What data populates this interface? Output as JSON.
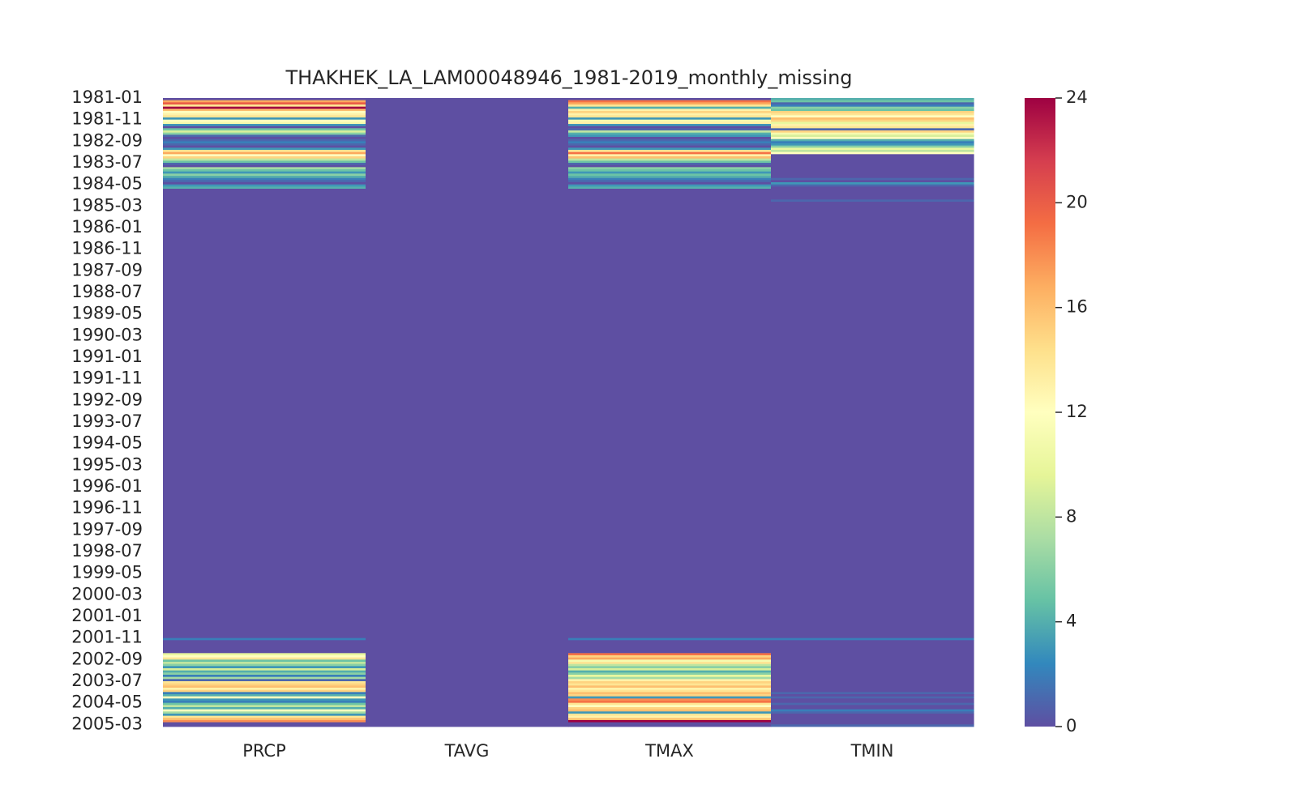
{
  "chart_data": {
    "type": "heatmap",
    "title": "THAKHEK_LA_LAM00048946_1981-2019_monthly_missing",
    "xlabel": "",
    "ylabel": "",
    "columns": [
      "PRCP",
      "TAVG",
      "TMAX",
      "TMIN"
    ],
    "row_start": "1981-01",
    "row_end": "2005-03",
    "ytick_labels": [
      "1981-01",
      "1981-11",
      "1982-09",
      "1983-07",
      "1984-05",
      "1985-03",
      "1986-01",
      "1986-11",
      "1987-09",
      "1988-07",
      "1989-05",
      "1990-03",
      "1991-01",
      "1991-11",
      "1992-09",
      "1993-07",
      "1994-05",
      "1995-03",
      "1996-01",
      "1996-11",
      "1997-09",
      "1998-07",
      "1999-05",
      "2000-03",
      "2001-01",
      "2001-11",
      "2002-09",
      "2003-07",
      "2004-05",
      "2005-03"
    ],
    "colorbar": {
      "colormap": "Spectral_r",
      "range": [
        0,
        24
      ],
      "ticks": [
        0,
        4,
        8,
        12,
        16,
        20,
        24
      ]
    },
    "series": [
      {
        "name": "PRCP",
        "segments": [
          {
            "from": "1981-01",
            "values": [
              0,
              17,
              20,
              14,
              24,
              16,
              12,
              13,
              14,
              3,
              12,
              11,
              3,
              0,
              5,
              9,
              6,
              1,
              0,
              1,
              2,
              1,
              0,
              3,
              14,
              17,
              12,
              15,
              8,
              5,
              1,
              0,
              7,
              5,
              3,
              6,
              4,
              2,
              1,
              0,
              3,
              4
            ]
          },
          {
            "from": "1984-11",
            "to": "2001-10",
            "value": 0
          },
          {
            "from": "2001-11",
            "values": [
              2
            ]
          },
          {
            "from": "2001-12",
            "to": "2002-05",
            "value": 0
          },
          {
            "from": "2002-06",
            "values": [
              10,
              12,
              14,
              5,
              8,
              6,
              3,
              9,
              4,
              6,
              2,
              7,
              1,
              14,
              15,
              16,
              13,
              15,
              2,
              4,
              12,
              3,
              2,
              5,
              8,
              4,
              12,
              7,
              3,
              14,
              16,
              18
            ]
          }
        ]
      },
      {
        "name": "TAVG",
        "segments": [
          {
            "from": "1981-01",
            "to": "2005-03",
            "value": 0
          }
        ]
      },
      {
        "name": "TMAX",
        "segments": [
          {
            "from": "1981-01",
            "values": [
              0,
              19,
              17,
              14,
              4,
              13,
              15,
              13,
              14,
              3,
              11,
              13,
              3,
              0,
              1,
              8,
              4,
              3,
              0,
              1,
              2,
              1,
              0,
              3,
              14,
              19,
              13,
              16,
              8,
              5,
              1,
              0,
              6,
              5,
              3,
              5,
              4,
              2,
              1,
              0,
              3,
              4
            ]
          },
          {
            "from": "1984-11",
            "to": "2001-10",
            "value": 0
          },
          {
            "from": "2001-11",
            "values": [
              2
            ]
          },
          {
            "from": "2001-12",
            "to": "2002-05",
            "value": 0
          },
          {
            "from": "2002-06",
            "values": [
              19,
              15,
              17,
              11,
              14,
              8,
              6,
              9,
              4,
              6,
              10,
              7,
              13,
              15,
              14,
              16,
              13,
              14,
              16,
              15,
              3,
              18,
              19,
              14,
              12,
              15,
              16,
              3,
              14,
              13,
              16,
              24
            ]
          }
        ]
      },
      {
        "name": "TMIN",
        "segments": [
          {
            "from": "1981-01",
            "values": [
              4,
              5,
              1,
              2,
              6,
              5,
              15,
              14,
              12,
              16,
              15,
              10,
              13,
              14,
              1,
              15,
              11,
              9,
              12,
              4,
              2,
              3,
              6,
              10,
              8,
              12
            ]
          },
          {
            "from": "1983-03",
            "to": "1984-01",
            "value": 0
          },
          {
            "from": "1984-02",
            "values": [
              1,
              0,
              3,
              1
            ]
          },
          {
            "from": "1984-06",
            "to": "1984-11",
            "value": 0
          },
          {
            "from": "1984-12",
            "values": [
              1
            ]
          },
          {
            "from": "1985-01",
            "to": "2001-10",
            "value": 0
          },
          {
            "from": "2001-11",
            "values": [
              2
            ]
          },
          {
            "from": "2001-12",
            "to": "2003-11",
            "value": 0
          },
          {
            "from": "2003-12",
            "values": [
              1,
              0,
              1,
              0,
              0,
              1,
              0,
              0,
              2,
              1
            ]
          },
          {
            "from": "2004-10",
            "to": "2005-02",
            "value": 0
          },
          {
            "from": "2005-03",
            "values": [
              1
            ]
          }
        ]
      }
    ]
  }
}
